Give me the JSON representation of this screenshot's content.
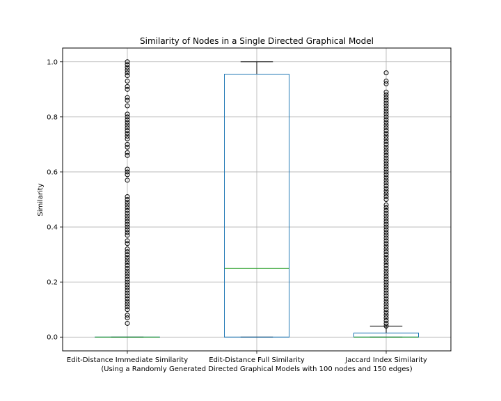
{
  "chart_data": {
    "type": "box",
    "title": "Similarity of Nodes in a Single Directed Graphical Model",
    "xlabel": "(Using a Randomly Generated Directed Graphical Models with 100 nodes and 150 edges)",
    "ylabel": "Similarity",
    "ylim": [
      -0.05,
      1.05
    ],
    "yticks": [
      "0.0",
      "0.2",
      "0.4",
      "0.6",
      "0.8",
      "1.0"
    ],
    "grid": true,
    "colors": {
      "box": "#1f77b4",
      "median": "#2ca02c",
      "whisker": "#000000",
      "outlier": "#000000",
      "grid": "#b0b0b0"
    },
    "categories": [
      "Edit-Distance Immediate Similarity",
      "Edit-Distance Full Similarity",
      "Jaccard Index Similarity"
    ],
    "boxes": [
      {
        "q1": 0.0,
        "median": 0.0,
        "q3": 0.0,
        "whislo": 0.0,
        "whishi": 0.0,
        "fliers": [
          0.05,
          0.07,
          0.08,
          0.1,
          0.11,
          0.12,
          0.13,
          0.14,
          0.15,
          0.16,
          0.17,
          0.18,
          0.19,
          0.2,
          0.21,
          0.22,
          0.23,
          0.24,
          0.25,
          0.26,
          0.27,
          0.28,
          0.29,
          0.3,
          0.31,
          0.32,
          0.34,
          0.35,
          0.37,
          0.38,
          0.39,
          0.4,
          0.41,
          0.42,
          0.43,
          0.44,
          0.45,
          0.46,
          0.47,
          0.48,
          0.49,
          0.5,
          0.51,
          0.57,
          0.59,
          0.6,
          0.61,
          0.66,
          0.67,
          0.69,
          0.7,
          0.72,
          0.73,
          0.74,
          0.75,
          0.76,
          0.77,
          0.78,
          0.79,
          0.8,
          0.81,
          0.84,
          0.86,
          0.87,
          0.9,
          0.91,
          0.93,
          0.95,
          0.96,
          0.97,
          0.98,
          0.99,
          1.0
        ]
      },
      {
        "q1": 0.0,
        "median": 0.25,
        "q3": 0.955,
        "whislo": 0.0,
        "whishi": 1.0,
        "fliers": []
      },
      {
        "q1": 0.0,
        "median": 0.0,
        "q3": 0.015,
        "whislo": 0.0,
        "whishi": 0.04,
        "fliers": [
          0.04,
          0.05,
          0.06,
          0.07,
          0.08,
          0.09,
          0.1,
          0.11,
          0.12,
          0.13,
          0.14,
          0.15,
          0.16,
          0.17,
          0.18,
          0.19,
          0.2,
          0.21,
          0.22,
          0.23,
          0.24,
          0.25,
          0.26,
          0.27,
          0.28,
          0.29,
          0.3,
          0.31,
          0.32,
          0.33,
          0.34,
          0.35,
          0.36,
          0.37,
          0.38,
          0.39,
          0.4,
          0.41,
          0.42,
          0.43,
          0.44,
          0.45,
          0.46,
          0.47,
          0.48,
          0.5,
          0.51,
          0.52,
          0.53,
          0.54,
          0.55,
          0.56,
          0.57,
          0.58,
          0.59,
          0.6,
          0.61,
          0.62,
          0.63,
          0.64,
          0.65,
          0.66,
          0.67,
          0.68,
          0.69,
          0.7,
          0.71,
          0.72,
          0.73,
          0.74,
          0.75,
          0.76,
          0.77,
          0.78,
          0.79,
          0.8,
          0.81,
          0.82,
          0.83,
          0.84,
          0.85,
          0.86,
          0.87,
          0.88,
          0.89,
          0.92,
          0.93,
          0.96
        ]
      }
    ]
  }
}
